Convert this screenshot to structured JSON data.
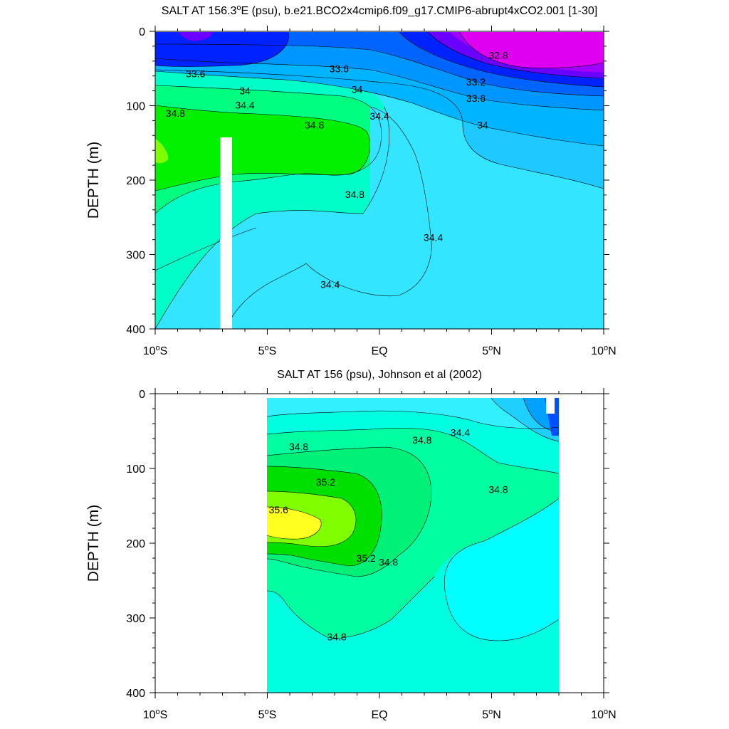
{
  "chart_data": [
    {
      "type": "contour",
      "title_parts": [
        "SALT AT 156.3",
        "o",
        "E (psu), b.e21.BCO2x4cmip6.f09_g17.CMIP6-abrupt4xCO2.001 [1-30]"
      ],
      "ylabel": "DEPTH (m)",
      "ylim": [
        400,
        0
      ],
      "xlim": [
        -10,
        10
      ],
      "x_ticks": [
        {
          "v": -10,
          "n": "10",
          "d": "S"
        },
        {
          "v": -5,
          "n": "5",
          "d": "S"
        },
        {
          "v": 0,
          "n": "EQ",
          "d": ""
        },
        {
          "v": 5,
          "n": "5",
          "d": "N"
        },
        {
          "v": 10,
          "n": "10",
          "d": "N"
        }
      ],
      "y_ticks": [
        "0",
        "100",
        "200",
        "300",
        "400"
      ],
      "contour_labels": [
        {
          "text": "33.6",
          "x": -8.2,
          "y": 57
        },
        {
          "text": "34",
          "x": -6.0,
          "y": 80
        },
        {
          "text": "34.4",
          "x": -6.0,
          "y": 99
        },
        {
          "text": "34.8",
          "x": -9.1,
          "y": 110
        },
        {
          "text": "34.8",
          "x": -2.9,
          "y": 126
        },
        {
          "text": "33.6",
          "x": -1.8,
          "y": 50
        },
        {
          "text": "34",
          "x": -1.0,
          "y": 78
        },
        {
          "text": "34.4",
          "x": 0.0,
          "y": 114
        },
        {
          "text": "34.8",
          "x": -1.1,
          "y": 219
        },
        {
          "text": "34.4",
          "x": 2.4,
          "y": 277
        },
        {
          "text": "34.4",
          "x": -2.2,
          "y": 340
        },
        {
          "text": "32.8",
          "x": 5.3,
          "y": 32
        },
        {
          "text": "33.2",
          "x": 4.3,
          "y": 68
        },
        {
          "text": "33.6",
          "x": 4.3,
          "y": 90
        },
        {
          "text": "34",
          "x": 4.6,
          "y": 126
        }
      ]
    },
    {
      "type": "contour",
      "title_parts": [
        "SALT AT 156 (psu), Johnson et al (2002)"
      ],
      "ylabel": "DEPTH (m)",
      "ylim": [
        400,
        0
      ],
      "xlim": [
        -10,
        10
      ],
      "x_ticks": [
        {
          "v": -10,
          "n": "10",
          "d": "S"
        },
        {
          "v": -5,
          "n": "5",
          "d": "S"
        },
        {
          "v": 0,
          "n": "EQ",
          "d": ""
        },
        {
          "v": 5,
          "n": "5",
          "d": "N"
        },
        {
          "v": 10,
          "n": "10",
          "d": "N"
        }
      ],
      "y_ticks": [
        "0",
        "100",
        "200",
        "300",
        "400"
      ],
      "contour_labels": [
        {
          "text": "34.8",
          "x": -3.6,
          "y": 71
        },
        {
          "text": "34.8",
          "x": 1.9,
          "y": 62
        },
        {
          "text": "34.4",
          "x": 3.6,
          "y": 52
        },
        {
          "text": "35.2",
          "x": -2.4,
          "y": 118
        },
        {
          "text": "35.6",
          "x": -4.5,
          "y": 155
        },
        {
          "text": "35.2",
          "x": -0.6,
          "y": 220
        },
        {
          "text": "34.8",
          "x": 0.4,
          "y": 225
        },
        {
          "text": "34.8",
          "x": 5.3,
          "y": 128
        },
        {
          "text": "34.8",
          "x": -1.9,
          "y": 325
        }
      ]
    }
  ]
}
